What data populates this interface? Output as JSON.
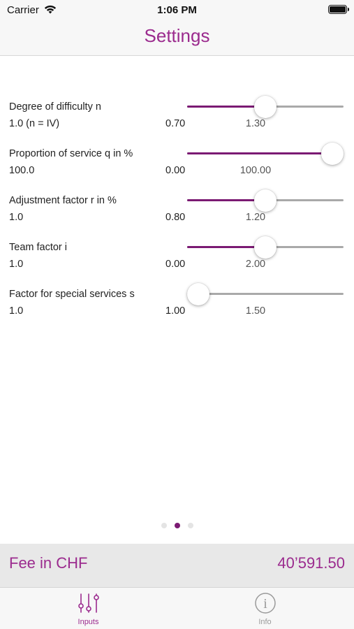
{
  "status_bar": {
    "carrier": "Carrier",
    "time": "1:06 PM"
  },
  "nav": {
    "title": "Settings"
  },
  "sliders": [
    {
      "label": "Degree of difficulty n",
      "value": "1.0 (n = IV)",
      "min": "0.70",
      "max": "1.30",
      "level": 0.5
    },
    {
      "label": "Proportion of service q in %",
      "value": "100.0",
      "min": "0.00",
      "max": "100.00",
      "level": 1.0
    },
    {
      "label": "Adjustment factor r in %",
      "value": "1.0",
      "min": "0.80",
      "max": "1.20",
      "level": 0.5
    },
    {
      "label": "Team factor i",
      "value": "1.0",
      "min": "0.00",
      "max": "2.00",
      "level": 0.5
    },
    {
      "label": "Factor for special services s",
      "value": "1.0",
      "min": "1.00",
      "max": "1.50",
      "level": 0.0
    }
  ],
  "pager": {
    "count": 3,
    "active": 1
  },
  "fee": {
    "label": "Fee in CHF",
    "value": "40’591.50"
  },
  "tabs": [
    {
      "label": "Inputs",
      "icon": "sliders-icon",
      "selected": true
    },
    {
      "label": "Info",
      "icon": "info-icon",
      "selected": false
    }
  ],
  "colors": {
    "accent": "#9b2b8e",
    "slider_fill": "#7b1a73",
    "track": "#a9a9a9"
  }
}
